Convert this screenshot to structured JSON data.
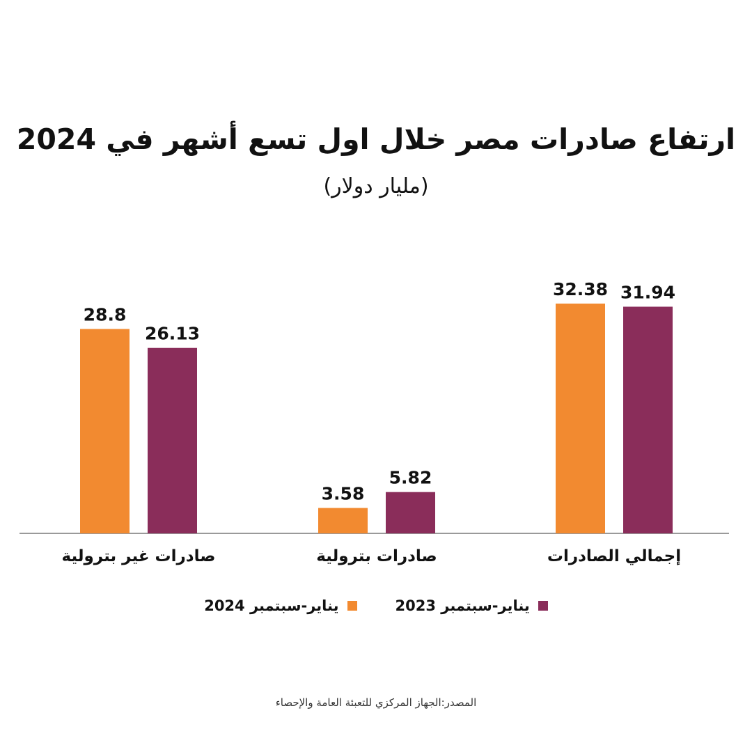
{
  "header": {
    "title": "ارتفاع صادرات مصر خلال اول تسع أشهر في 2024",
    "subtitle": "(مليار دولار)"
  },
  "legend": [
    {
      "label": "يناير-سبتمبر 2023",
      "color": "#8a2d5a"
    },
    {
      "label": "يناير-سبتمبر 2024",
      "color": "#f28a30"
    }
  ],
  "source": "المصدر:الجهاز المركزي للتعبئة العامة والإحصاء",
  "chart_data": {
    "type": "bar",
    "title": "ارتفاع صادرات مصر خلال اول تسع أشهر في 2024",
    "subtitle": "(مليار دولار)",
    "categories": [
      "إجمالي الصادرات",
      "صادرات بترولية",
      "صادرات غير بترولية"
    ],
    "series": [
      {
        "name": "يناير-سبتمبر 2023",
        "color": "#8a2d5a",
        "values": [
          31.94,
          5.82,
          26.13
        ]
      },
      {
        "name": "يناير-سبتمبر 2024",
        "color": "#f28a30",
        "values": [
          32.38,
          3.58,
          28.8
        ]
      }
    ],
    "value_labels": {
      "2023": [
        "31.94",
        "5.82",
        "26.13"
      ],
      "2024": [
        "32.38",
        "3.58",
        "28.8"
      ]
    },
    "ylim": [
      0,
      36
    ],
    "grid": false,
    "legend_position": "bottom"
  }
}
